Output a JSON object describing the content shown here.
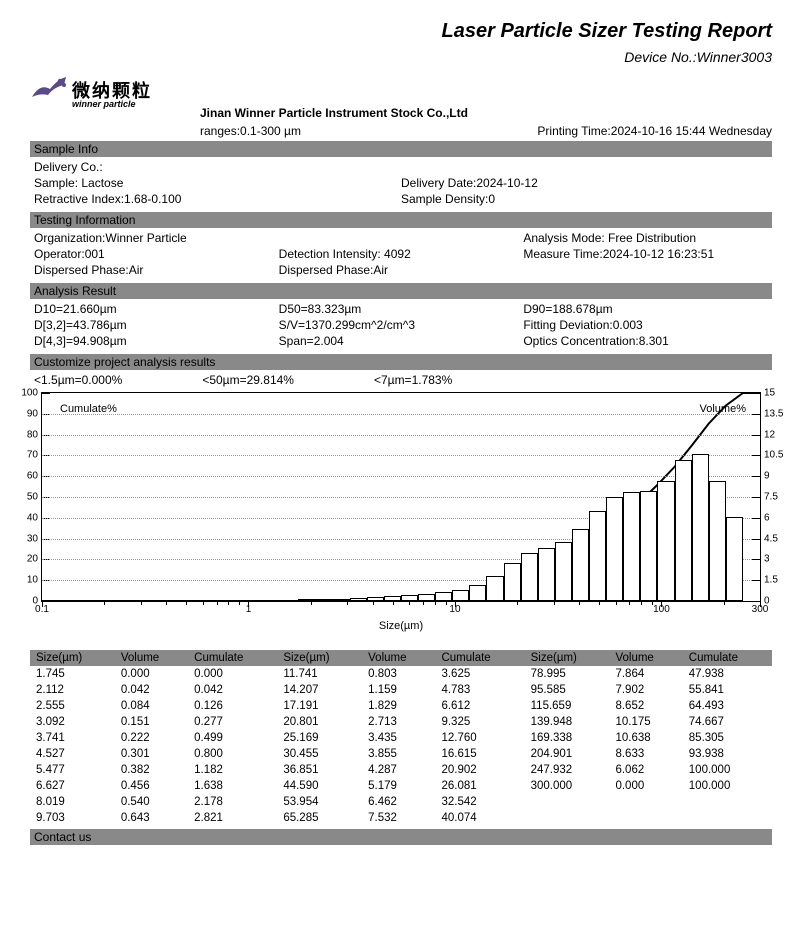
{
  "title": "Laser Particle Sizer Testing Report",
  "device_no_label": "Device No.:",
  "device_no": "Winner3003",
  "logo": {
    "cn": "微纳颗粒",
    "en": "winner particle"
  },
  "company": "Jinan Winner Particle Instrument Stock Co.,Ltd",
  "ranges": "ranges:0.1-300 µm",
  "printing_time": "Printing Time:2024-10-16 15:44 Wednesday",
  "sections": {
    "sample_info": "Sample Info",
    "testing_info": "Testing Information",
    "analysis_result": "Analysis Result",
    "customize": "Customize project analysis results",
    "contact": "Contact us"
  },
  "sample_info": {
    "delivery_co": "Delivery Co.:",
    "sample": "Sample:  Lactose",
    "delivery_date": "Delivery Date:2024-10-12",
    "retractive": "Retractive Index:1.68-0.100",
    "density": "Sample Density:0"
  },
  "testing_info": {
    "org": "Organization:Winner Particle",
    "mode": "Analysis Mode:  Free Distribution",
    "operator": "Operator:001",
    "detection": "Detection Intensity:  4092",
    "measure_time": "Measure Time:2024-10-12 16:23:51",
    "dispersed1": "Dispersed Phase:Air",
    "dispersed2": "Dispersed Phase:Air"
  },
  "analysis_result": {
    "d10": "D10=21.660µm",
    "d50": "D50=83.323µm",
    "d90": "D90=188.678µm",
    "d32": "D[3,2]=43.786µm",
    "sv": "S/V=1370.299cm^2/cm^3",
    "fit": "Fitting Deviation:0.003",
    "d43": "D[4,3]=94.908µm",
    "span": "Span=2.004",
    "optics": "Optics Concentration:8.301"
  },
  "customize": {
    "c1": "<1.5µm=0.000%",
    "c2": "<50µm=29.814%",
    "c3": "<7µm=1.783%"
  },
  "chart": {
    "xlabel": "Size(µm)",
    "cumulate_label": "Cumulate%",
    "volume_label": "Volume%",
    "x_log_min": 0.1,
    "x_log_max": 300,
    "y_left_max": 100,
    "y_right_max": 15,
    "y_left_ticks": [
      0,
      10,
      20,
      30,
      40,
      50,
      60,
      70,
      80,
      90,
      100
    ],
    "y_right_ticks": [
      0,
      1.5,
      3,
      4.5,
      6,
      7.5,
      9,
      10.5,
      12,
      13.5,
      15
    ],
    "x_ticks": [
      0.1,
      1,
      10,
      100,
      300
    ],
    "bars": [
      {
        "x": 1.745,
        "v": 0.0
      },
      {
        "x": 2.112,
        "v": 0.042
      },
      {
        "x": 2.555,
        "v": 0.084
      },
      {
        "x": 3.092,
        "v": 0.151
      },
      {
        "x": 3.741,
        "v": 0.222
      },
      {
        "x": 4.527,
        "v": 0.301
      },
      {
        "x": 5.477,
        "v": 0.382
      },
      {
        "x": 6.627,
        "v": 0.456
      },
      {
        "x": 8.019,
        "v": 0.54
      },
      {
        "x": 9.703,
        "v": 0.643
      },
      {
        "x": 11.741,
        "v": 0.803
      },
      {
        "x": 14.207,
        "v": 1.159
      },
      {
        "x": 17.191,
        "v": 1.829
      },
      {
        "x": 20.801,
        "v": 2.713
      },
      {
        "x": 25.169,
        "v": 3.435
      },
      {
        "x": 30.455,
        "v": 3.855
      },
      {
        "x": 36.851,
        "v": 4.287
      },
      {
        "x": 44.59,
        "v": 5.179
      },
      {
        "x": 53.954,
        "v": 6.462
      },
      {
        "x": 65.285,
        "v": 7.532
      },
      {
        "x": 78.995,
        "v": 7.864
      },
      {
        "x": 95.585,
        "v": 7.902
      },
      {
        "x": 115.659,
        "v": 8.652
      },
      {
        "x": 139.948,
        "v": 10.175
      },
      {
        "x": 169.338,
        "v": 10.638
      },
      {
        "x": 204.901,
        "v": 8.633
      },
      {
        "x": 247.932,
        "v": 6.062
      },
      {
        "x": 300.0,
        "v": 0.0
      }
    ],
    "cumulate": [
      {
        "x": 1.745,
        "c": 0.0
      },
      {
        "x": 2.112,
        "c": 0.042
      },
      {
        "x": 2.555,
        "c": 0.126
      },
      {
        "x": 3.092,
        "c": 0.277
      },
      {
        "x": 3.741,
        "c": 0.499
      },
      {
        "x": 4.527,
        "c": 0.8
      },
      {
        "x": 5.477,
        "c": 1.182
      },
      {
        "x": 6.627,
        "c": 1.638
      },
      {
        "x": 8.019,
        "c": 2.178
      },
      {
        "x": 9.703,
        "c": 2.821
      },
      {
        "x": 11.741,
        "c": 3.625
      },
      {
        "x": 14.207,
        "c": 4.783
      },
      {
        "x": 17.191,
        "c": 6.612
      },
      {
        "x": 20.801,
        "c": 9.325
      },
      {
        "x": 25.169,
        "c": 12.76
      },
      {
        "x": 30.455,
        "c": 16.615
      },
      {
        "x": 36.851,
        "c": 20.902
      },
      {
        "x": 44.59,
        "c": 26.081
      },
      {
        "x": 53.954,
        "c": 32.542
      },
      {
        "x": 65.285,
        "c": 40.074
      },
      {
        "x": 78.995,
        "c": 47.938
      },
      {
        "x": 95.585,
        "c": 55.841
      },
      {
        "x": 115.659,
        "c": 64.493
      },
      {
        "x": 139.948,
        "c": 74.667
      },
      {
        "x": 169.338,
        "c": 85.305
      },
      {
        "x": 204.901,
        "c": 93.938
      },
      {
        "x": 247.932,
        "c": 100.0
      },
      {
        "x": 300.0,
        "c": 100.0
      }
    ]
  },
  "table": {
    "headers": [
      "Size(µm)",
      "Volume",
      "Cumulate",
      "Size(µm)",
      "Volume",
      "Cumulate",
      "Size(µm)",
      "Volume",
      "Cumulate"
    ],
    "rows": [
      [
        "1.745",
        "0.000",
        "0.000",
        "11.741",
        "0.803",
        "3.625",
        "78.995",
        "7.864",
        "47.938"
      ],
      [
        "2.112",
        "0.042",
        "0.042",
        "14.207",
        "1.159",
        "4.783",
        "95.585",
        "7.902",
        "55.841"
      ],
      [
        "2.555",
        "0.084",
        "0.126",
        "17.191",
        "1.829",
        "6.612",
        "115.659",
        "8.652",
        "64.493"
      ],
      [
        "3.092",
        "0.151",
        "0.277",
        "20.801",
        "2.713",
        "9.325",
        "139.948",
        "10.175",
        "74.667"
      ],
      [
        "3.741",
        "0.222",
        "0.499",
        "25.169",
        "3.435",
        "12.760",
        "169.338",
        "10.638",
        "85.305"
      ],
      [
        "4.527",
        "0.301",
        "0.800",
        "30.455",
        "3.855",
        "16.615",
        "204.901",
        "8.633",
        "93.938"
      ],
      [
        "5.477",
        "0.382",
        "1.182",
        "36.851",
        "4.287",
        "20.902",
        "247.932",
        "6.062",
        "100.000"
      ],
      [
        "6.627",
        "0.456",
        "1.638",
        "44.590",
        "5.179",
        "26.081",
        "300.000",
        "0.000",
        "100.000"
      ],
      [
        "8.019",
        "0.540",
        "2.178",
        "53.954",
        "6.462",
        "32.542",
        "",
        "",
        ""
      ],
      [
        "9.703",
        "0.643",
        "2.821",
        "65.285",
        "7.532",
        "40.074",
        "",
        "",
        ""
      ]
    ]
  }
}
